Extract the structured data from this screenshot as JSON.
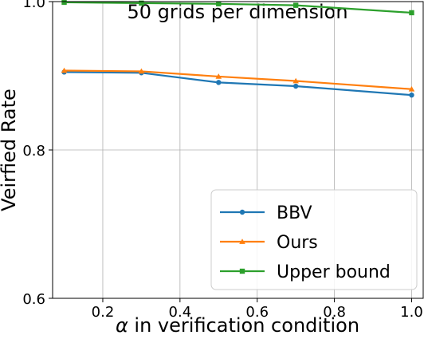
{
  "chart_data": {
    "type": "line",
    "title": "50 grids per dimension",
    "xlabel_symbol": "α",
    "xlabel_rest": " in verification condition",
    "ylabel": "Veirfied Rate",
    "xlim": [
      0.07,
      1.03
    ],
    "ylim": [
      0.6,
      1.0
    ],
    "xticks": [
      0.2,
      0.4,
      0.6,
      0.8,
      1.0
    ],
    "xtick_labels": [
      "0.2",
      "0.4",
      "0.6",
      "0.8",
      "1.0"
    ],
    "yticks": [
      0.6,
      0.8,
      1.0
    ],
    "ytick_labels": [
      "0.6",
      "0.8",
      "1.0"
    ],
    "grid": true,
    "legend_position": "lower-right",
    "x": [
      0.1,
      0.3,
      0.5,
      0.7,
      1.0
    ],
    "series": [
      {
        "name": "BBV",
        "color": "#1f77b4",
        "marker": "circle",
        "values": [
          0.905,
          0.904,
          0.891,
          0.886,
          0.874
        ]
      },
      {
        "name": "Ours",
        "color": "#ff7f0e",
        "marker": "triangle",
        "values": [
          0.907,
          0.906,
          0.899,
          0.893,
          0.882
        ]
      },
      {
        "name": "Upper bound",
        "color": "#2ca02c",
        "marker": "square",
        "values": [
          0.999,
          0.998,
          0.997,
          0.995,
          0.985
        ]
      }
    ]
  }
}
